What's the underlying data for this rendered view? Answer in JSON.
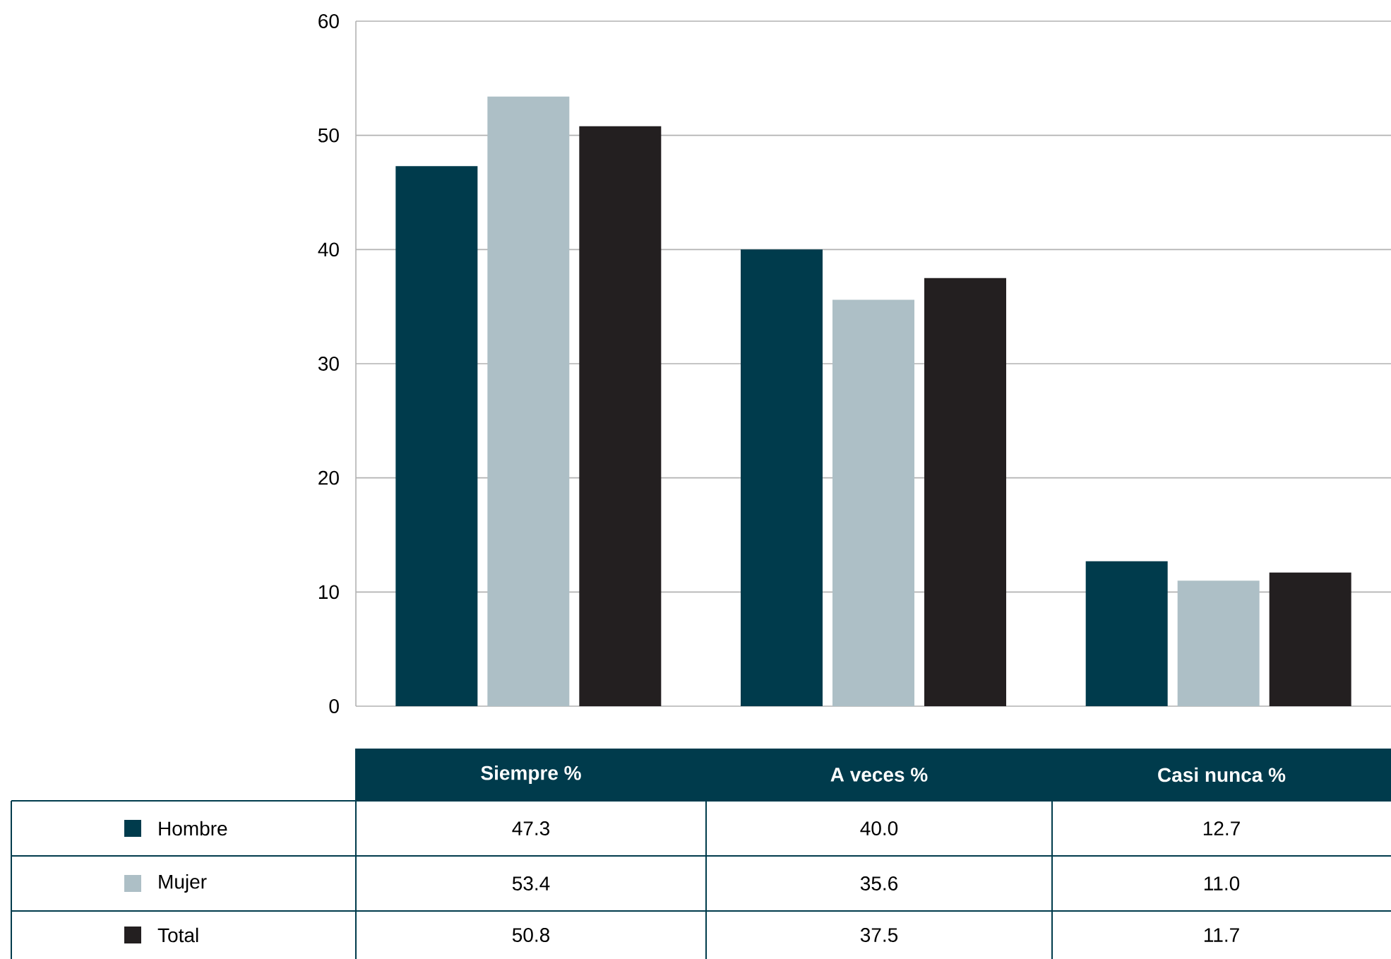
{
  "chart_data": {
    "type": "bar",
    "categories": [
      "Siempre %",
      "A veces %",
      "Casi nunca %"
    ],
    "series": [
      {
        "name": "Hombre",
        "color": "#003b4c",
        "values": [
          47.3,
          40.0,
          12.7
        ],
        "value_labels": [
          "47.3",
          "40.0",
          "12.7"
        ]
      },
      {
        "name": "Mujer",
        "color": "#adbfc6",
        "values": [
          53.4,
          35.6,
          11.0
        ],
        "value_labels": [
          "53.4",
          "35.6",
          "11.0"
        ]
      },
      {
        "name": "Total",
        "color": "#231f20",
        "values": [
          50.8,
          37.5,
          11.7
        ],
        "value_labels": [
          "50.8",
          "37.5",
          "11.7"
        ]
      }
    ],
    "ylim": [
      0,
      60
    ],
    "yticks": [
      0,
      10,
      20,
      30,
      40,
      50,
      60
    ],
    "grid": "y",
    "legend": "bottom left"
  }
}
